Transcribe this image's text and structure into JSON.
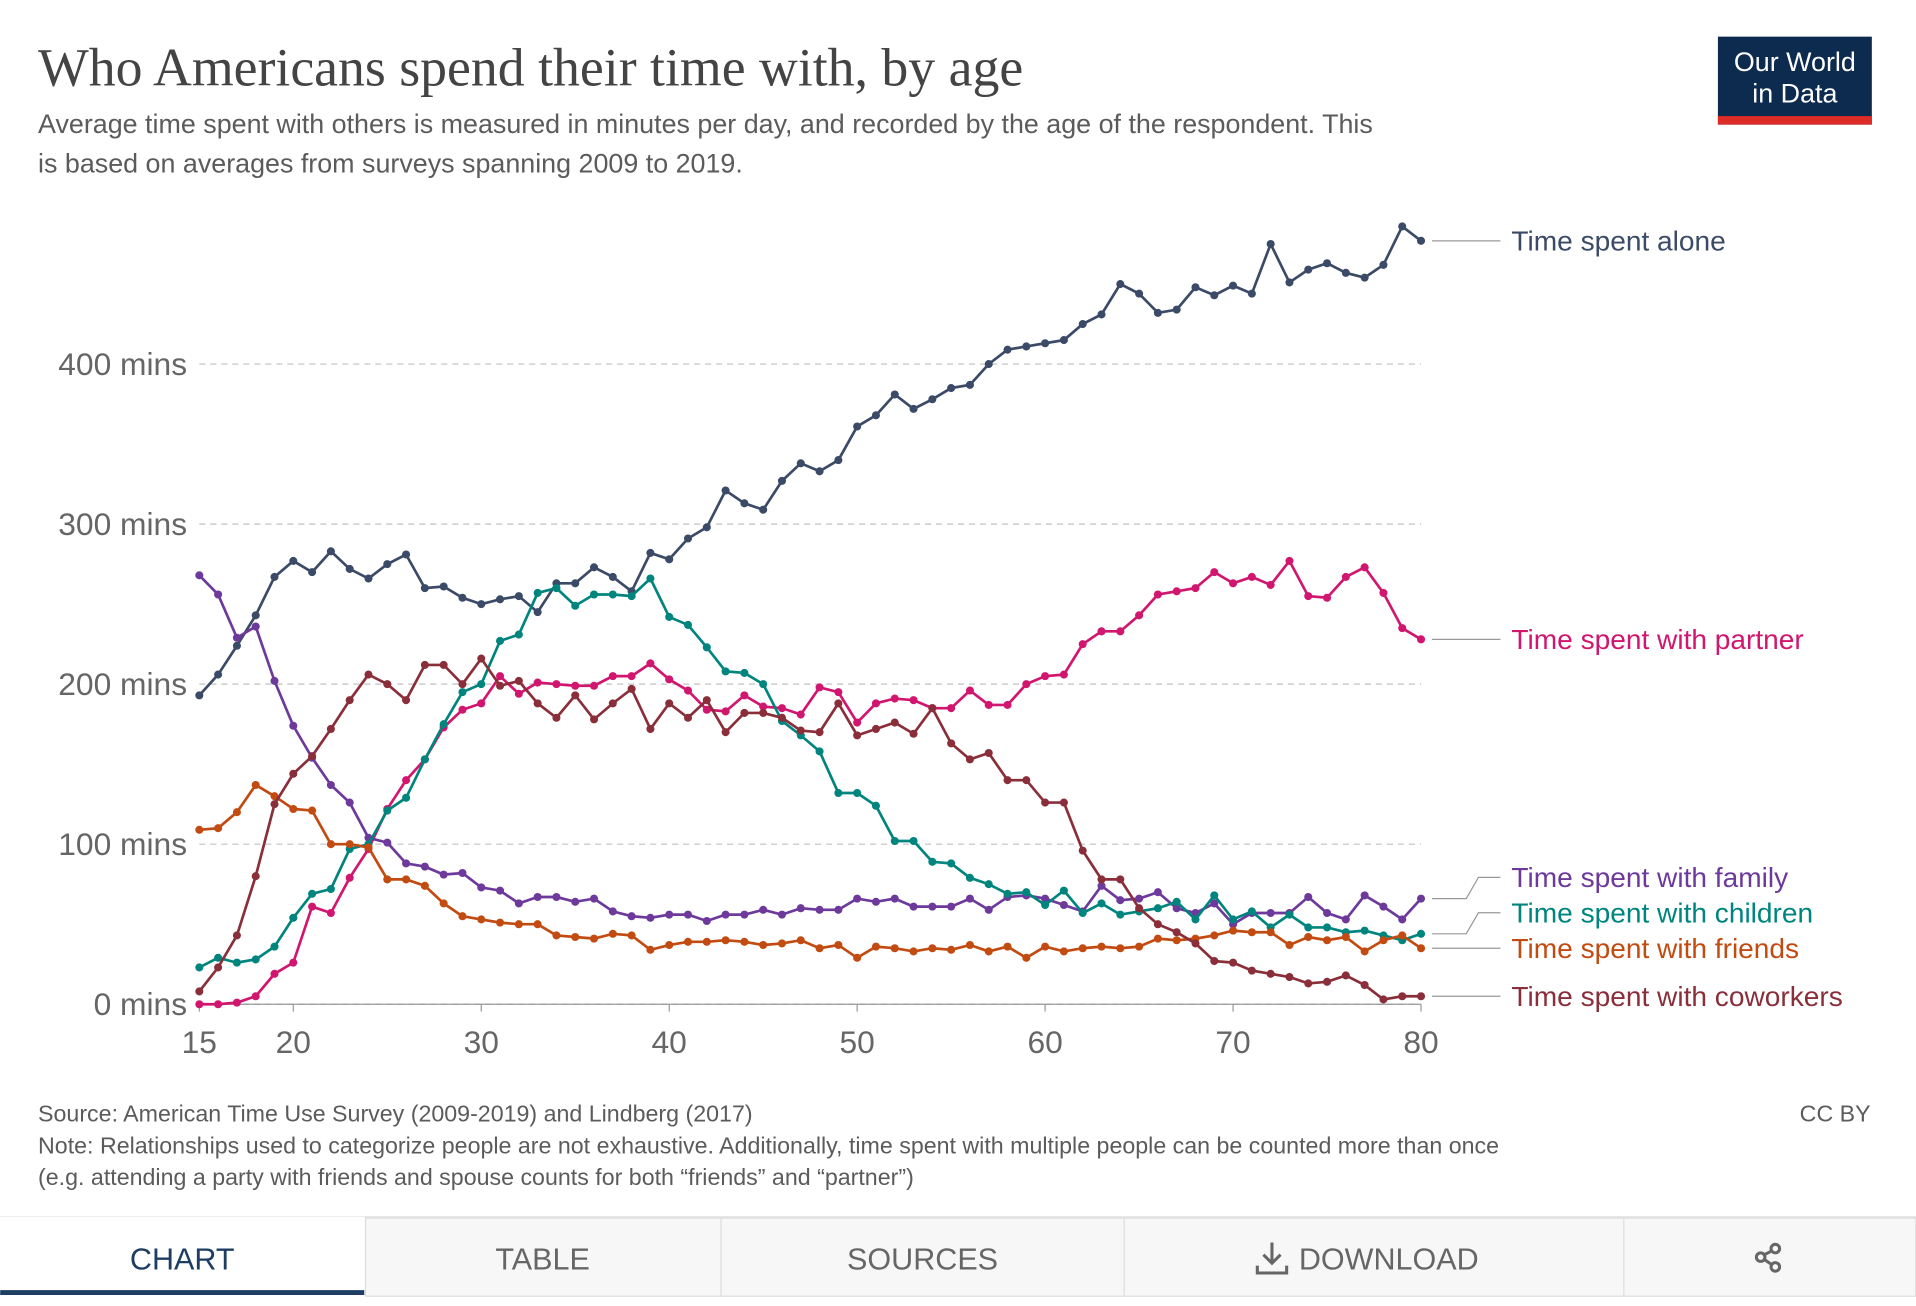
{
  "chart_data": {
    "type": "line",
    "title": "Who Americans spend their time with, by age",
    "subtitle": [
      "Average time spent with others is measured in minutes per day, and recorded by the age of the respondent. This",
      "is based on averages from surveys spanning 2009 to 2019."
    ],
    "x": [
      15,
      16,
      17,
      18,
      19,
      20,
      21,
      22,
      23,
      24,
      25,
      26,
      27,
      28,
      29,
      30,
      31,
      32,
      33,
      34,
      35,
      36,
      37,
      38,
      39,
      40,
      41,
      42,
      43,
      44,
      45,
      46,
      47,
      48,
      49,
      50,
      51,
      52,
      53,
      54,
      55,
      56,
      57,
      58,
      59,
      60,
      61,
      62,
      63,
      64,
      65,
      66,
      67,
      68,
      69,
      70,
      71,
      72,
      73,
      74,
      75,
      76,
      77,
      78,
      79,
      80
    ],
    "xlim": [
      15,
      80
    ],
    "xticks": [
      15,
      20,
      30,
      40,
      50,
      60,
      70,
      80
    ],
    "ylim": [
      0,
      490
    ],
    "yticks": [
      {
        "value": 0,
        "label": "0 mins"
      },
      {
        "value": 100,
        "label": "100 mins"
      },
      {
        "value": 200,
        "label": "200 mins"
      },
      {
        "value": 300,
        "label": "300 mins"
      },
      {
        "value": 400,
        "label": "400 mins"
      }
    ],
    "grid": true,
    "series": [
      {
        "name": "Time spent alone",
        "color": "#3b4a66",
        "values": [
          193,
          206,
          224,
          243,
          267,
          277,
          270,
          283,
          272,
          266,
          275,
          281,
          260,
          261,
          254,
          250,
          253,
          255,
          245,
          263,
          263,
          273,
          267,
          258,
          282,
          278,
          291,
          298,
          321,
          313,
          309,
          327,
          338,
          333,
          340,
          361,
          368,
          381,
          372,
          378,
          385,
          387,
          400,
          409,
          411,
          413,
          415,
          425,
          431,
          450,
          444,
          432,
          434,
          448,
          443,
          449,
          444,
          475,
          451,
          459,
          463,
          457,
          454,
          462,
          486,
          477
        ]
      },
      {
        "name": "Time spent with partner",
        "color": "#d0166e",
        "values": [
          0,
          0,
          1,
          5,
          19,
          26,
          61,
          57,
          79,
          97,
          122,
          140,
          153,
          173,
          184,
          188,
          205,
          194,
          201,
          200,
          199,
          199,
          205,
          205,
          213,
          203,
          196,
          184,
          183,
          193,
          186,
          185,
          181,
          198,
          195,
          176,
          188,
          191,
          190,
          185,
          185,
          196,
          187,
          187,
          200,
          205,
          206,
          225,
          233,
          233,
          243,
          256,
          258,
          260,
          270,
          263,
          267,
          262,
          277,
          255,
          254,
          267,
          273,
          257,
          235,
          228
        ]
      },
      {
        "name": "Time spent with family",
        "color": "#6d3a9c",
        "values": [
          268,
          256,
          229,
          236,
          202,
          174,
          154,
          137,
          126,
          104,
          101,
          88,
          86,
          81,
          82,
          73,
          71,
          63,
          67,
          67,
          64,
          66,
          58,
          55,
          54,
          56,
          56,
          52,
          56,
          56,
          59,
          56,
          60,
          59,
          59,
          66,
          64,
          66,
          61,
          61,
          61,
          66,
          59,
          67,
          68,
          66,
          62,
          58,
          74,
          65,
          66,
          70,
          60,
          57,
          63,
          50,
          57,
          57,
          57,
          67,
          57,
          53,
          68,
          61,
          53,
          66
        ]
      },
      {
        "name": "Time spent with children",
        "color": "#00857e",
        "values": [
          23,
          29,
          26,
          28,
          36,
          54,
          69,
          72,
          97,
          100,
          121,
          129,
          153,
          175,
          195,
          200,
          227,
          231,
          257,
          260,
          249,
          256,
          256,
          255,
          266,
          242,
          237,
          223,
          208,
          207,
          200,
          177,
          168,
          158,
          132,
          132,
          124,
          102,
          102,
          89,
          88,
          79,
          75,
          69,
          70,
          62,
          71,
          57,
          63,
          56,
          58,
          60,
          64,
          53,
          68,
          53,
          58,
          48,
          56,
          48,
          48,
          45,
          46,
          43,
          40,
          44
        ]
      },
      {
        "name": "Time spent with friends",
        "color": "#c24b12",
        "values": [
          109,
          110,
          120,
          137,
          130,
          122,
          121,
          100,
          100,
          98,
          78,
          78,
          74,
          63,
          55,
          53,
          51,
          50,
          50,
          43,
          42,
          41,
          44,
          43,
          34,
          37,
          39,
          39,
          40,
          39,
          37,
          38,
          40,
          35,
          37,
          29,
          36,
          35,
          33,
          35,
          34,
          37,
          33,
          36,
          29,
          36,
          33,
          35,
          36,
          35,
          36,
          41,
          40,
          41,
          43,
          46,
          45,
          45,
          37,
          42,
          40,
          42,
          33,
          40,
          43,
          35
        ]
      },
      {
        "name": "Time spent with coworkers",
        "color": "#8a2f3a",
        "values": [
          8,
          23,
          43,
          80,
          125,
          144,
          155,
          172,
          190,
          206,
          200,
          190,
          212,
          212,
          200,
          216,
          199,
          202,
          188,
          179,
          193,
          178,
          188,
          197,
          172,
          188,
          179,
          190,
          170,
          182,
          182,
          179,
          171,
          170,
          188,
          168,
          172,
          176,
          169,
          185,
          163,
          153,
          157,
          140,
          140,
          126,
          126,
          96,
          78,
          78,
          60,
          50,
          45,
          38,
          27,
          26,
          21,
          19,
          17,
          13,
          14,
          18,
          12,
          3,
          5,
          5
        ]
      }
    ],
    "source": "Source: American Time Use Survey (2009-2019) and Lindberg (2017)",
    "note": [
      "Note: Relationships used to categorize people are not exhaustive. Additionally, time spent with multiple people can be counted more than once",
      "(e.g. attending a party with friends and spouse counts for both “friends” and “partner”)"
    ],
    "license": "CC BY"
  },
  "logo": [
    "Our World",
    "in Data"
  ],
  "tabs": [
    "CHART",
    "TABLE",
    "SOURCES",
    "DOWNLOAD"
  ]
}
